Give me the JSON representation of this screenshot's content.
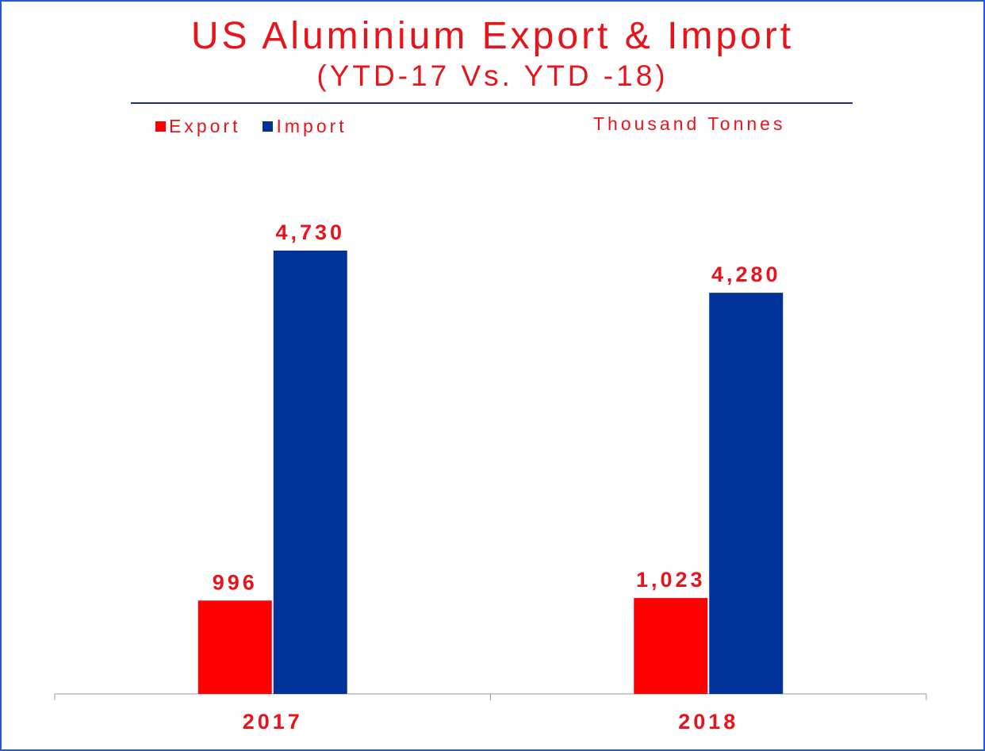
{
  "chart_data": {
    "type": "bar",
    "title": "US Aluminium Export & Import",
    "subtitle": "(YTD-17 Vs. YTD -18)",
    "unit": "Thousand Tonnes",
    "categories": [
      "2017",
      "2018"
    ],
    "series": [
      {
        "name": "Export",
        "values": [
          996,
          1023
        ],
        "labels": [
          "996",
          "1,023"
        ],
        "color": "#ff0000"
      },
      {
        "name": "Import",
        "values": [
          4730,
          4280
        ],
        "labels": [
          "4,730",
          "4,280"
        ],
        "color": "#003399"
      }
    ],
    "ylim": [
      0,
      5000
    ],
    "grid": false,
    "legend_position": "top-left"
  }
}
